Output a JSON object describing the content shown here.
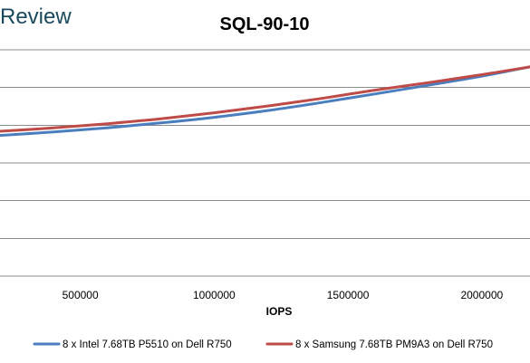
{
  "brand": {
    "text": "Review"
  },
  "chart_data": {
    "type": "line",
    "title": "SQL-90-10",
    "xlabel": "IOPS",
    "ylabel": "",
    "xlim": [
      200000,
      2180000
    ],
    "ylim": [
      0,
      6
    ],
    "x_ticks": [
      500000,
      1000000,
      1500000,
      2000000
    ],
    "x_tick_labels": [
      "500000",
      "1000000",
      "1500000",
      "2000000"
    ],
    "y_gridlines": [
      0,
      1,
      2,
      3,
      4,
      5,
      6
    ],
    "y_tick_labels_visible": false,
    "grid": true,
    "legend_position": "bottom",
    "series": [
      {
        "name": "8 x Intel 7.68TB P5510 on Dell R750",
        "color": "#4a7ebf",
        "x": [
          200000,
          400000,
          600000,
          800000,
          1000000,
          1200000,
          1400000,
          1600000,
          1800000,
          2000000,
          2180000
        ],
        "y": [
          3.73,
          3.82,
          3.93,
          4.06,
          4.21,
          4.39,
          4.6,
          4.83,
          5.06,
          5.3,
          5.55
        ]
      },
      {
        "name": "8 x Samsung 7.68TB PM9A3 on Dell R750",
        "color": "#be4b48",
        "x": [
          200000,
          400000,
          600000,
          800000,
          1000000,
          1200000,
          1400000,
          1600000,
          1800000,
          2000000,
          2180000
        ],
        "y": [
          3.84,
          3.93,
          4.04,
          4.17,
          4.33,
          4.51,
          4.71,
          4.93,
          5.13,
          5.34,
          5.55
        ]
      }
    ]
  }
}
